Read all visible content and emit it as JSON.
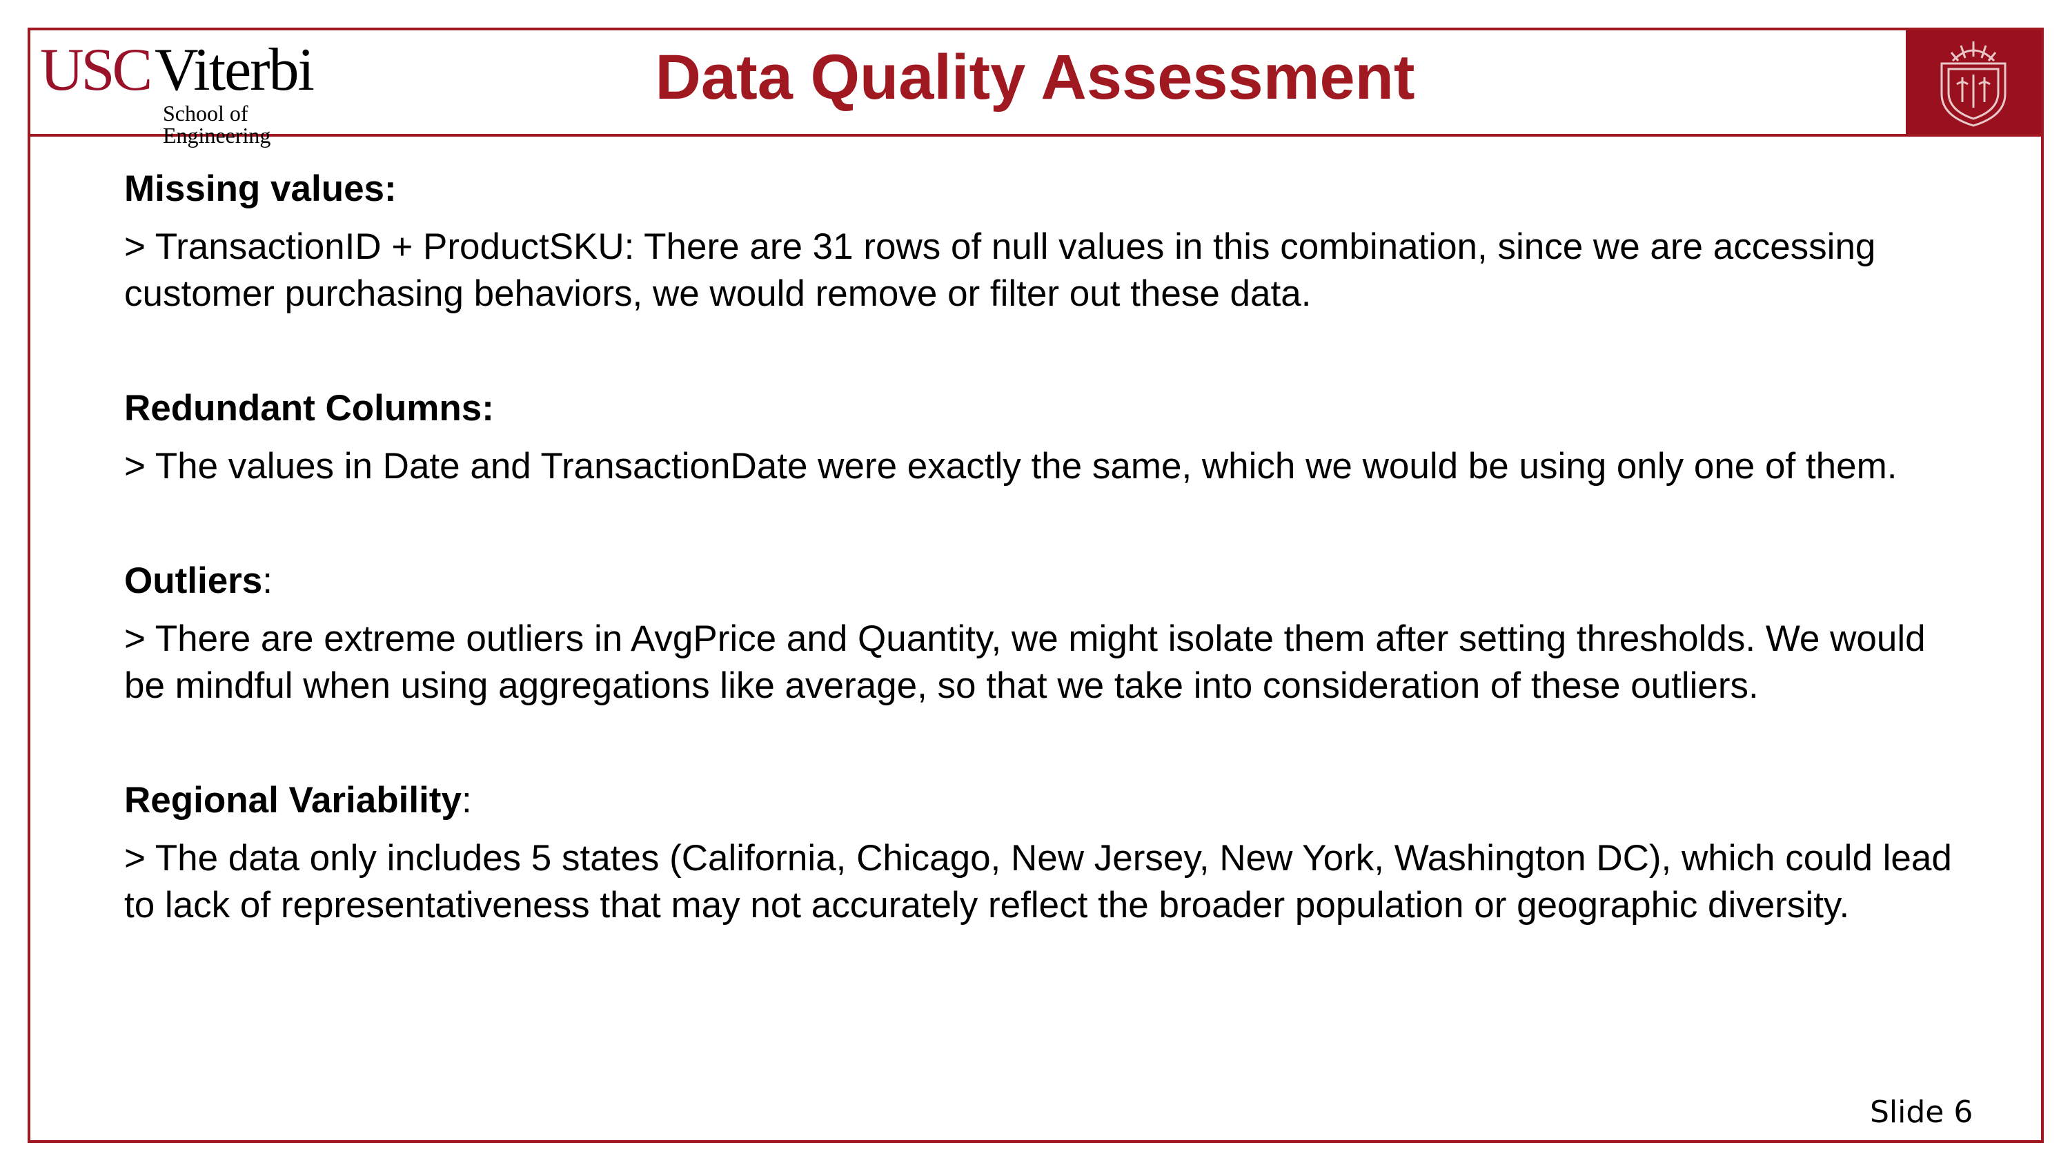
{
  "logo": {
    "usc": "USC",
    "viterbi": "Viterbi",
    "school": "School of Engineering"
  },
  "title": "Data Quality Assessment",
  "seal": {
    "icon": "usc-seal-icon"
  },
  "colors": {
    "accent": "#a01820",
    "seal_bg": "#99111e"
  },
  "sections": [
    {
      "heading": "Missing values:",
      "heading_suffix": "",
      "body": "> TransactionID + ProductSKU: There are 31 rows of null values in this combination, since we are accessing customer purchasing behaviors, we would remove or filter out these data."
    },
    {
      "heading": "Redundant Columns:",
      "heading_suffix": "",
      "body": "> The values in Date and TransactionDate were exactly the same, which we would be using only one of them."
    },
    {
      "heading": "Outliers",
      "heading_suffix": ":",
      "body": "> There are extreme outliers in AvgPrice and Quantity, we might isolate them after setting thresholds. We would be mindful when using aggregations like average, so that we take into consideration of these outliers."
    },
    {
      "heading": "Regional Variability",
      "heading_suffix": ":",
      "body": "> The data only includes 5 states (California, Chicago, New Jersey, New York, Washington DC), which could lead to lack of representativeness that may not accurately reflect the broader population or geographic diversity."
    }
  ],
  "slide_number": "Slide 6"
}
